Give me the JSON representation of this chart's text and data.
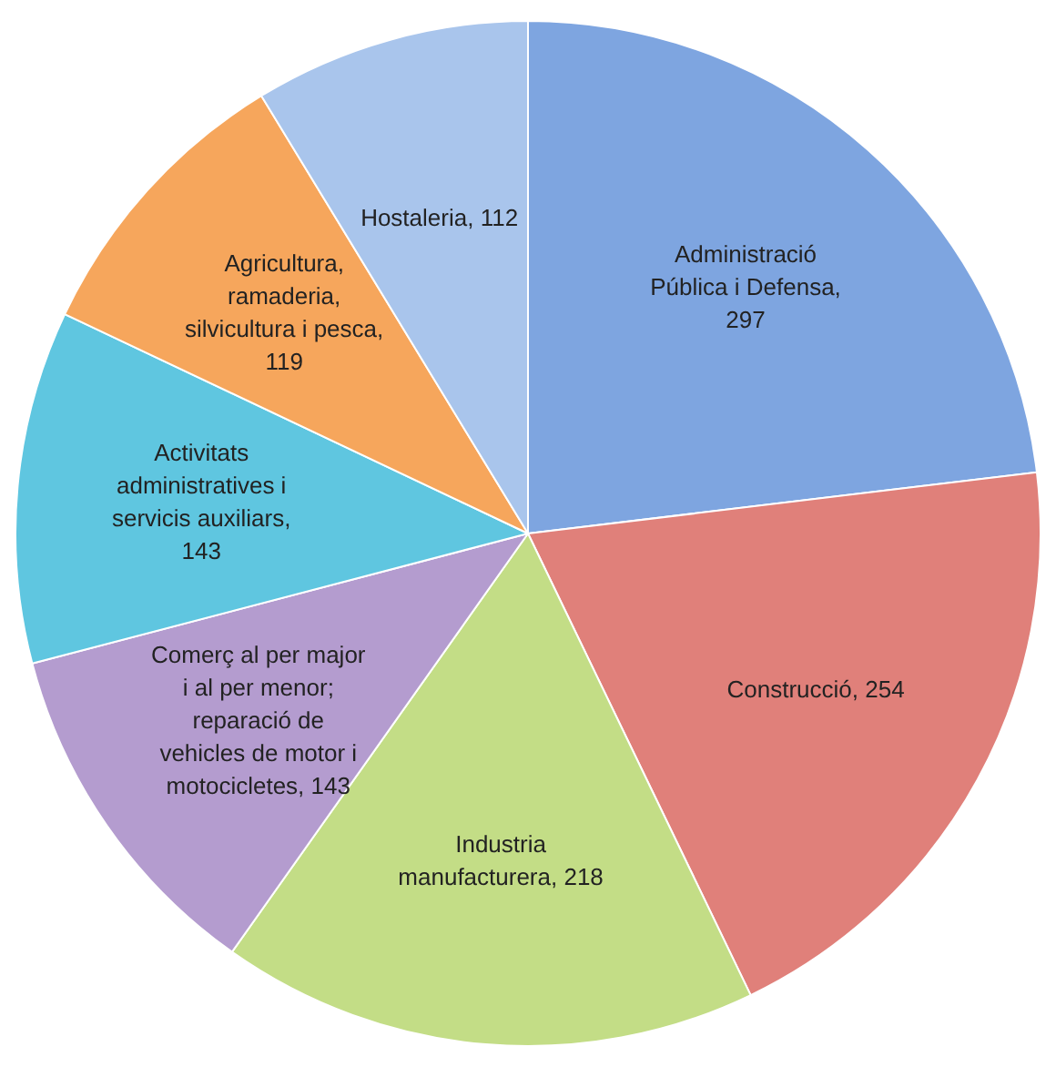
{
  "chart_data": {
    "type": "pie",
    "categories": [
      "Administració Pública i Defensa",
      "Construcció",
      "Industria manufacturera",
      "Comerç al per major i al per menor; reparació de vehicles de motor i motocicletes",
      "Activitats administratives i servicis auxiliars",
      "Agricultura, ramaderia, silvicultura i pesca",
      "Hostaleria"
    ],
    "values": [
      297,
      254,
      218,
      143,
      143,
      119,
      112
    ],
    "colors": [
      "#7ea5e0",
      "#e0807a",
      "#c3dd86",
      "#b49ccf",
      "#5fc6e0",
      "#f6a65c",
      "#a9c5ec"
    ],
    "value_labels": [
      ", 297",
      ", 254",
      ", 218",
      ", 143",
      ", 143",
      ", 119",
      ", 112"
    ],
    "legend": false
  }
}
